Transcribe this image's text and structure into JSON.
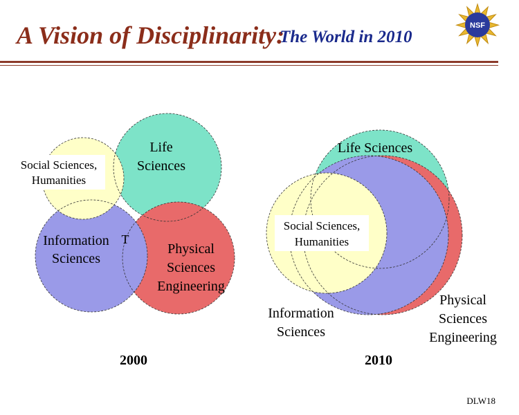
{
  "header": {
    "title": "A Vision of Disciplinarity:",
    "subtitle": "The World in 2010",
    "logo_text": "NSF"
  },
  "diagrams": [
    {
      "year": "2000",
      "labels": {
        "social_line1": "Social Sciences,",
        "social_line2": "Humanities",
        "life_line1": "Life",
        "life_line2": "Sciences",
        "info_line1": "Information",
        "info_line2": "Sciences",
        "stray_mark": "T",
        "phys_line1": "Physical",
        "phys_line2": "Sciences",
        "phys_line3": "Engineering"
      }
    },
    {
      "year": "2010",
      "labels": {
        "life": "Life Sciences",
        "social_line1": "Social Sciences,",
        "social_line2": "Humanities",
        "info_line1": "Information",
        "info_line2": "Sciences",
        "phys_line1": "Physical",
        "phys_line2": "Sciences",
        "phys_line3": "Engineering"
      }
    }
  ],
  "colors": {
    "title": "#8b2d1a",
    "subtitle": "#1a2a8c",
    "life": "#7de3c8",
    "physical": "#e86a6a",
    "information": "#9a9ae8",
    "social": "#ffffc8"
  },
  "footer": {
    "code": "DLW18"
  }
}
